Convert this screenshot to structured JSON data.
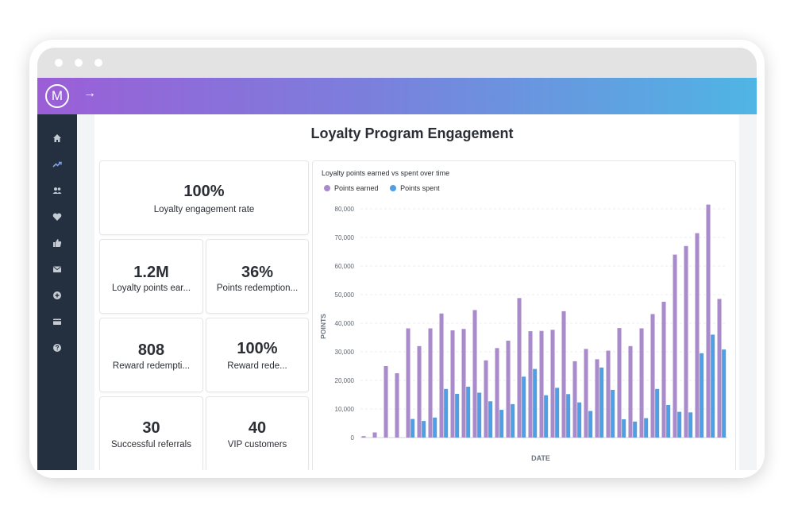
{
  "app": {
    "logo_letter": "M",
    "nav_arrow": "→"
  },
  "sidebar": {
    "items": [
      {
        "icon": "home-icon"
      },
      {
        "icon": "trending-icon"
      },
      {
        "icon": "users-icon"
      },
      {
        "icon": "heart-icon"
      },
      {
        "icon": "thumbs-up-icon"
      },
      {
        "icon": "mail-icon"
      },
      {
        "icon": "plus-circle-icon"
      },
      {
        "icon": "credit-card-icon"
      },
      {
        "icon": "help-icon"
      }
    ]
  },
  "dashboard": {
    "title": "Loyalty Program Engagement",
    "metrics": [
      {
        "value": "100%",
        "label": "Loyalty engagement rate"
      },
      {
        "value": "1.2M",
        "label": "Loyalty points ear..."
      },
      {
        "value": "36%",
        "label": "Points redemption..."
      },
      {
        "value": "808",
        "label": "Reward redempti..."
      },
      {
        "value": "100%",
        "label": "Reward rede..."
      },
      {
        "value": "30",
        "label": "Successful referrals"
      },
      {
        "value": "40",
        "label": "VIP customers"
      }
    ]
  },
  "chart_data": {
    "type": "bar",
    "title": "Loyalty points earned vs spent over time",
    "xlabel": "DATE",
    "ylabel": "POINTS",
    "ylim": [
      0,
      80000
    ],
    "yticks": [
      0,
      10000,
      20000,
      30000,
      40000,
      50000,
      60000,
      70000,
      80000
    ],
    "ytick_labels": [
      "0",
      "10,000",
      "20,000",
      "30,000",
      "40,000",
      "50,000",
      "60,000",
      "70,000",
      "80,000"
    ],
    "legend_position": "top-left",
    "grid": true,
    "colors": {
      "earned": "#a98bcc",
      "spent": "#509ee3"
    },
    "series": [
      {
        "name": "Points earned",
        "values": [
          500,
          1800,
          25000,
          22500,
          38200,
          32000,
          38200,
          43400,
          37500,
          38000,
          44600,
          27000,
          31300,
          33900,
          48800,
          37200,
          37300,
          37700,
          44200,
          26700,
          31000,
          27400,
          30400,
          38300,
          32000,
          38200,
          43200,
          47500,
          64000,
          67000,
          71500,
          81500,
          48500
        ]
      },
      {
        "name": "Points spent",
        "values": [
          0,
          0,
          0,
          0,
          6500,
          5800,
          7000,
          17000,
          15300,
          17800,
          15700,
          12700,
          9700,
          11700,
          21300,
          24000,
          14800,
          17400,
          15200,
          12300,
          9300,
          24500,
          16700,
          6400,
          5600,
          6800,
          17000,
          11400,
          9000,
          8800,
          29500,
          36000,
          30800
        ]
      }
    ]
  }
}
